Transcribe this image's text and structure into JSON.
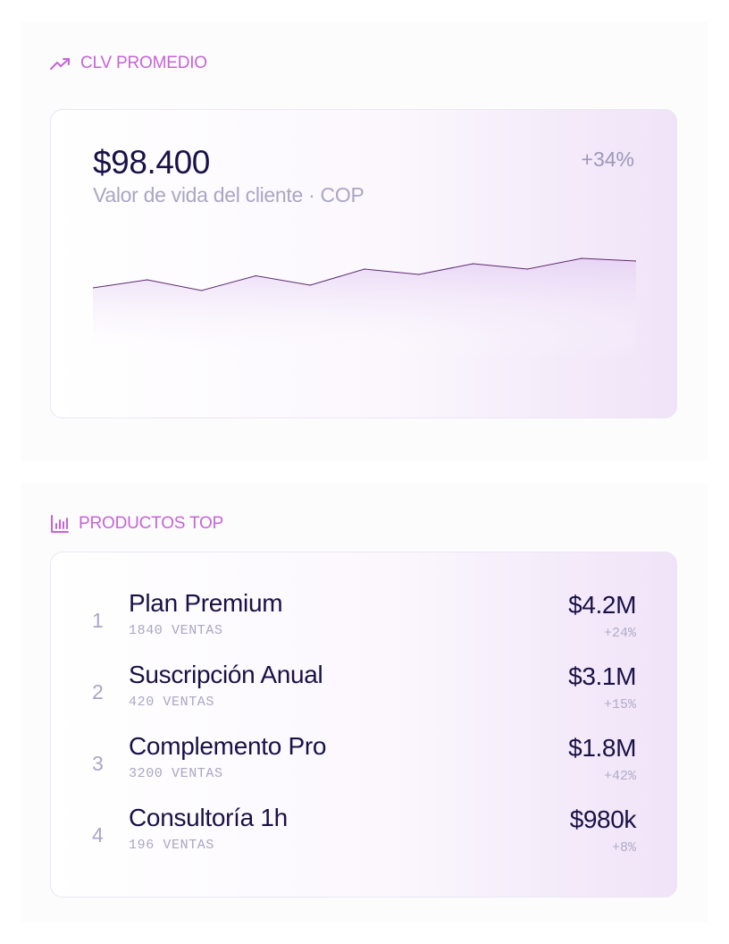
{
  "clv": {
    "section_title": "CLV PROMEDIO",
    "title_icon": "trending-up-icon",
    "value": "$98.400",
    "subtitle": "Valor de vida del cliente · COP",
    "change": "+34%"
  },
  "products": {
    "section_title": "PRODUCTOS TOP",
    "title_icon": "bar-chart-icon",
    "items": [
      {
        "rank": "1",
        "name": "Plan Premium",
        "units": "1840 VENTAS",
        "amount": "$4.2M",
        "growth": "+24%"
      },
      {
        "rank": "2",
        "name": "Suscripción Anual",
        "units": "420 VENTAS",
        "amount": "$3.1M",
        "growth": "+15%"
      },
      {
        "rank": "3",
        "name": "Complemento Pro",
        "units": "3200 VENTAS",
        "amount": "$1.8M",
        "growth": "+42%"
      },
      {
        "rank": "4",
        "name": "Consultoría 1h",
        "units": "196 VENTAS",
        "amount": "$980k",
        "growth": "+8%"
      }
    ]
  },
  "chart_data": {
    "type": "area",
    "values": [
      54,
      60,
      52,
      63,
      56,
      68,
      64,
      72,
      68,
      76,
      74
    ],
    "ylim": [
      0,
      100
    ],
    "grid": false,
    "line_color": "#5d2a6e",
    "fill_color": "#e9d6f5"
  },
  "colors": {
    "accent": "#c763d8",
    "text_dark": "#1a1147",
    "text_muted": "#aaa6c4"
  }
}
